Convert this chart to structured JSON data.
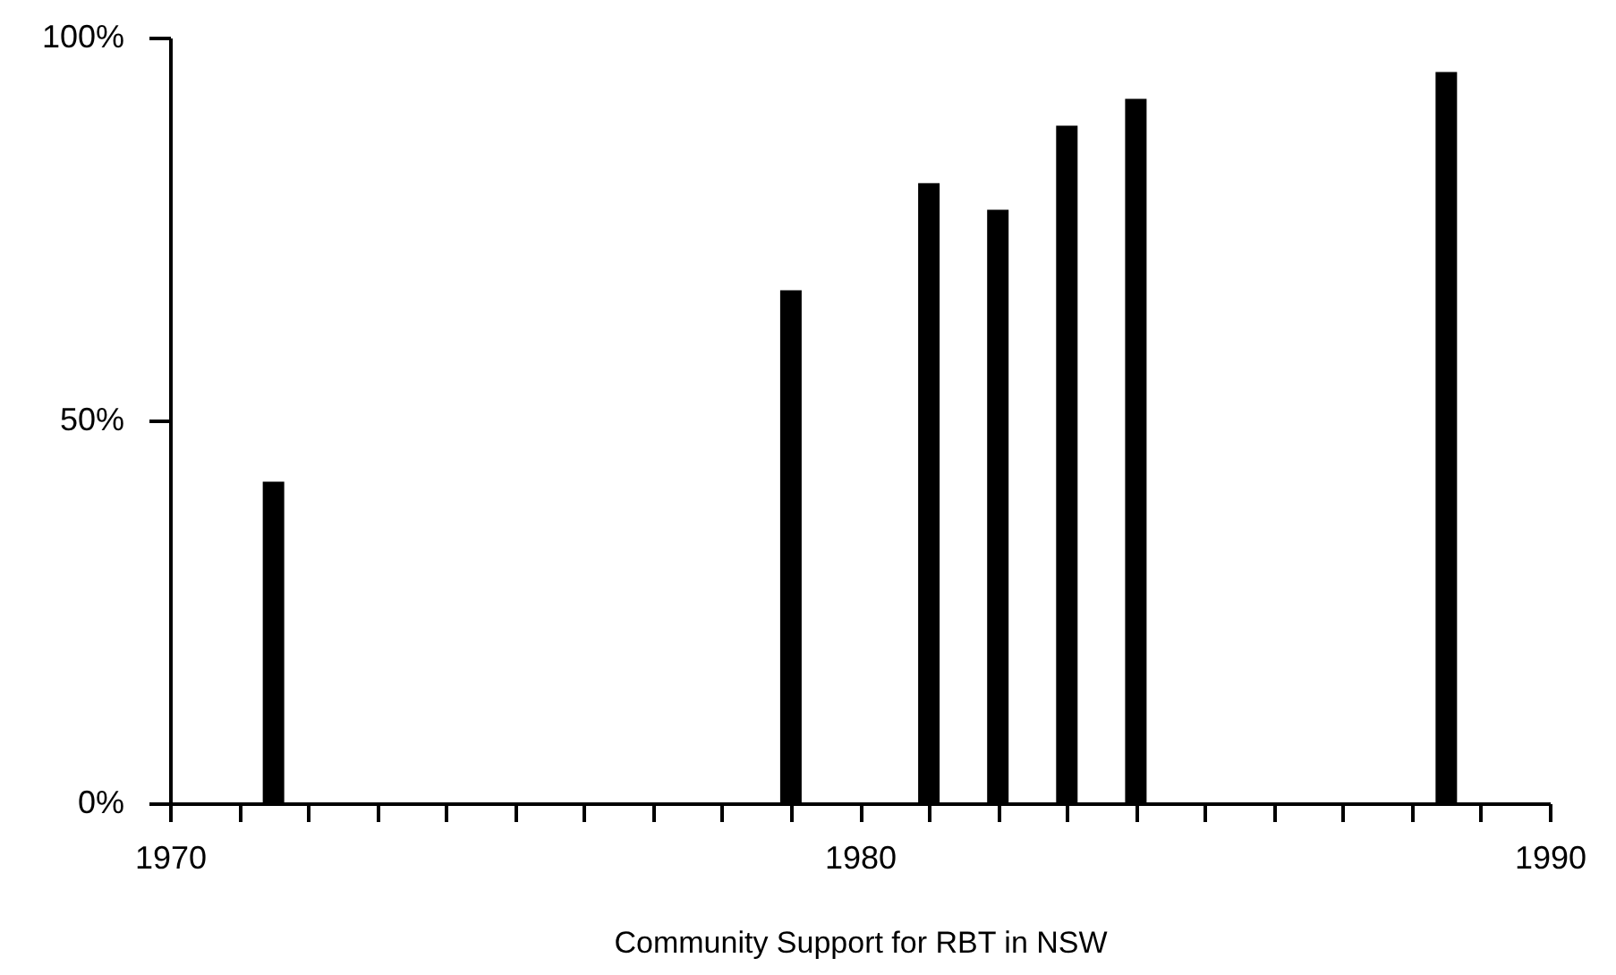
{
  "chart_data": {
    "type": "bar",
    "xlabel": "Community Support for RBT in NSW",
    "x": [
      1971.5,
      1979,
      1981,
      1982,
      1983,
      1984,
      1988.5
    ],
    "values": [
      42,
      67,
      81,
      77.5,
      88.5,
      92,
      95.5
    ],
    "color": "#000000",
    "xlim": [
      1970,
      1990
    ],
    "xticks": [
      1970,
      {
        "value": 1971,
        "label": null
      },
      {
        "value": 1972,
        "label": null
      },
      {
        "value": 1973,
        "label": null
      },
      {
        "value": 1974,
        "label": null
      },
      {
        "value": 1975,
        "label": null
      },
      {
        "value": 1976,
        "label": null
      },
      {
        "value": 1977,
        "label": null
      },
      {
        "value": 1978,
        "label": null
      },
      {
        "value": 1979,
        "label": null
      },
      1980,
      {
        "value": 1981,
        "label": null
      },
      {
        "value": 1982,
        "label": null
      },
      {
        "value": 1983,
        "label": null
      },
      {
        "value": 1984,
        "label": null
      },
      {
        "value": 1985,
        "label": null
      },
      {
        "value": 1986,
        "label": null
      },
      {
        "value": 1987,
        "label": null
      },
      {
        "value": 1988,
        "label": null
      },
      {
        "value": 1989,
        "label": null
      },
      1990
    ],
    "ylim": [
      0,
      100
    ],
    "yticks": [
      {
        "value": 0,
        "label": "0%"
      },
      {
        "value": 50,
        "label": "50%"
      },
      {
        "value": 100,
        "label": "100%"
      }
    ],
    "grid": false
  }
}
